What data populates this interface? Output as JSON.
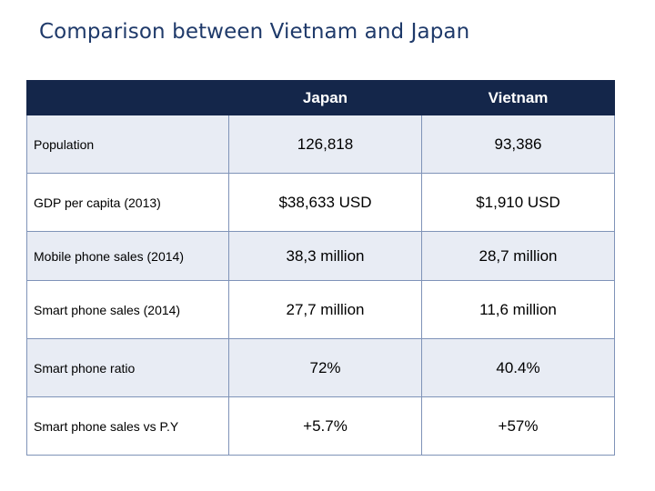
{
  "slide": {
    "title": "Comparison between Vietnam and Japan"
  },
  "table": {
    "headers": [
      "",
      "Japan",
      "Vietnam"
    ],
    "rows": [
      {
        "label": "Population",
        "japan": "126,818",
        "vietnam": "93,386"
      },
      {
        "label": "GDP per capita (2013)",
        "japan": "$38,633 USD",
        "vietnam": "$1,910 USD"
      },
      {
        "label": "Mobile phone sales (2014)",
        "japan": "38,3 million",
        "vietnam": "28,7 million"
      },
      {
        "label": "Smart phone sales (2014)",
        "japan": "27,7 million",
        "vietnam": "11,6 million"
      },
      {
        "label": "Smart phone ratio",
        "japan": "72%",
        "vietnam": "40.4%"
      },
      {
        "label": "Smart phone sales vs P.Y",
        "japan": "+5.7%",
        "vietnam": "+57%"
      }
    ]
  },
  "colors": {
    "title": "#1f3a6a",
    "header_bg": "#14264a",
    "row_shade": "#e8ecf4",
    "grid": "#7f93b8"
  }
}
